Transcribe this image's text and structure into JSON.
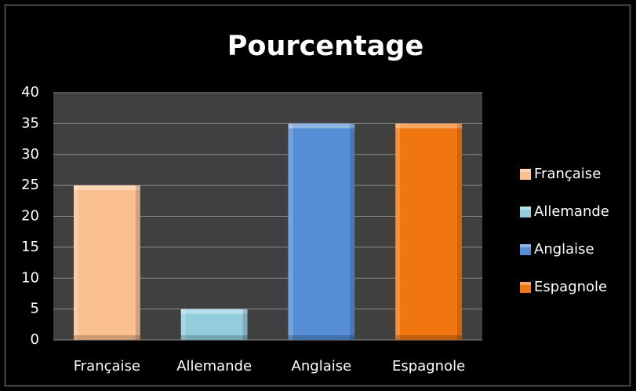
{
  "chart_data": {
    "type": "bar",
    "title": "Pourcentage",
    "categories": [
      "Française",
      "Allemande",
      "Anglaise",
      "Espagnole"
    ],
    "values": [
      25,
      5,
      35,
      35
    ],
    "colors": [
      "#fac090",
      "#93cddd",
      "#558ed5",
      "#f2760f"
    ],
    "ylim": [
      0,
      40
    ],
    "yticks": [
      0,
      5,
      10,
      15,
      20,
      25,
      30,
      35,
      40
    ],
    "grid": true,
    "legend": "right"
  }
}
